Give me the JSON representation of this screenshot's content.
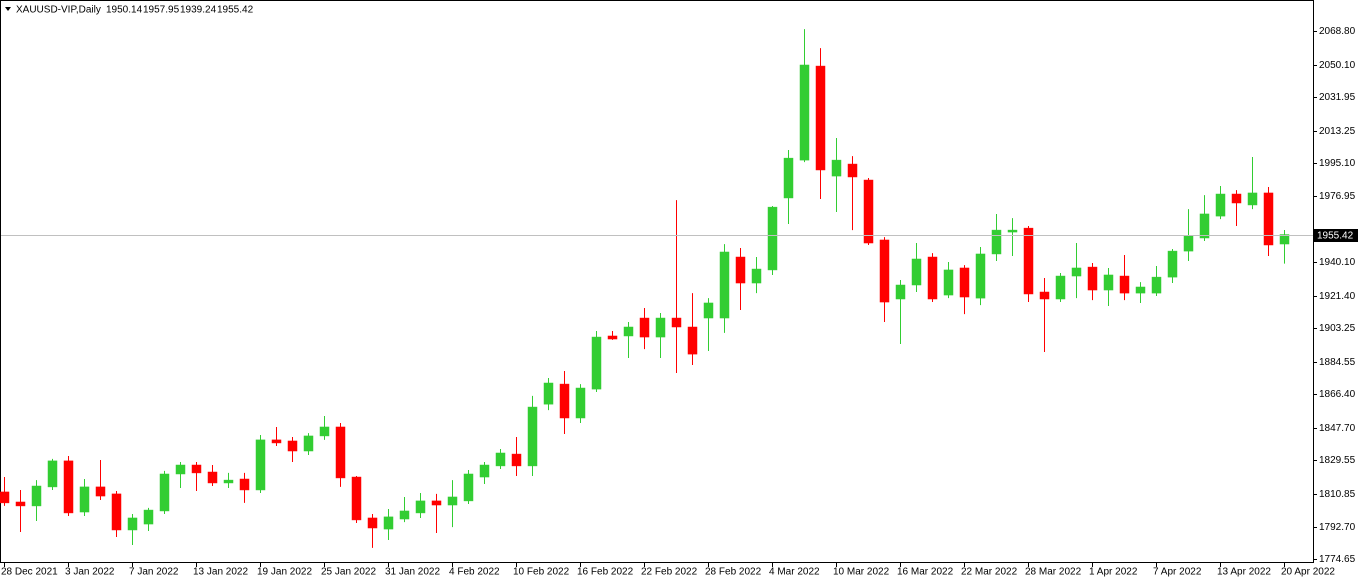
{
  "chart_data": {
    "type": "candlestick",
    "symbol": "XAUUSD-VIP,Daily",
    "categories": [
      "28 Dec 2021",
      null,
      null,
      null,
      "3 Jan 2022",
      null,
      null,
      null,
      "7 Jan 2022",
      null,
      null,
      null,
      "13 Jan 2022",
      null,
      null,
      null,
      "19 Jan 2022",
      null,
      null,
      null,
      "25 Jan 2022",
      null,
      null,
      null,
      "31 Jan 2022",
      null,
      null,
      null,
      "4 Feb 2022",
      null,
      null,
      null,
      "10 Feb 2022",
      null,
      null,
      null,
      "16 Feb 2022",
      null,
      null,
      null,
      "22 Feb 2022",
      null,
      null,
      null,
      "28 Feb 2022",
      null,
      null,
      null,
      "4 Mar 2022",
      null,
      null,
      null,
      "10 Mar 2022",
      null,
      null,
      null,
      "16 Mar 2022",
      null,
      null,
      null,
      "22 Mar 2022",
      null,
      null,
      null,
      "28 Mar 2022",
      null,
      null,
      null,
      "1 Apr 2022",
      null,
      null,
      null,
      "7 Apr 2022",
      null,
      null,
      null,
      "13 Apr 2022",
      null,
      null,
      null,
      "20 Apr 2022"
    ],
    "open": [
      1812.0,
      1806.4,
      1804.2,
      1814.8,
      1829.3,
      1800.8,
      1814.8,
      1810.9,
      1790.8,
      1794.1,
      1801.4,
      1822.0,
      1827.0,
      1823.1,
      1817.0,
      1819.2,
      1813.1,
      1841.0,
      1840.4,
      1834.8,
      1843.2,
      1848.2,
      1820.3,
      1797.5,
      1791.3,
      1796.9,
      1800.3,
      1807.0,
      1804.7,
      1807.0,
      1820.3,
      1826.5,
      1833.1,
      1826.5,
      1860.9,
      1872.1,
      1853.2,
      1869.3,
      1898.9,
      1898.9,
      1908.9,
      1898.3,
      1908.9,
      1903.9,
      1908.9,
      1908.9,
      1942.9,
      1928.4,
      1935.7,
      1975.8,
      1996.9,
      2049.3,
      1988.0,
      1994.7,
      1985.8,
      1952.4,
      1919.5,
      1927.3,
      1942.9,
      1921.7,
      1936.8,
      1920.0,
      1944.6,
      1956.8,
      1959.0,
      1923.4,
      1919.5,
      1932.3,
      1937.3,
      1924.5,
      1932.3,
      1922.8,
      1922.8,
      1931.7,
      1946.2,
      1953.5,
      1965.7,
      1978.0,
      1971.9,
      1978.6,
      1950.14
    ],
    "high": [
      1820.3,
      1813.1,
      1818.6,
      1830.4,
      1832.0,
      1819.2,
      1829.8,
      1812.5,
      1799.7,
      1803.1,
      1823.7,
      1828.7,
      1828.7,
      1827.0,
      1822.6,
      1822.6,
      1843.7,
      1848.2,
      1842.6,
      1844.8,
      1854.3,
      1850.4,
      1820.9,
      1799.7,
      1802.5,
      1809.2,
      1811.4,
      1810.9,
      1818.6,
      1824.2,
      1828.7,
      1835.9,
      1842.6,
      1865.5,
      1875.5,
      1879.4,
      1872.1,
      1901.7,
      1901.7,
      1906.7,
      1914.5,
      1911.7,
      1974.6,
      1922.8,
      1920.0,
      1950.1,
      1947.9,
      1942.9,
      1971.3,
      2002.5,
      2069.9,
      2059.3,
      2009.2,
      1999.1,
      1986.9,
      1954.0,
      1930.1,
      1950.7,
      1945.1,
      1940.1,
      1938.4,
      1948.5,
      1966.9,
      1964.6,
      1960.2,
      1931.2,
      1934.0,
      1950.7,
      1939.6,
      1936.8,
      1944.0,
      1928.9,
      1937.9,
      1947.4,
      1969.6,
      1977.4,
      1982.5,
      1980.2,
      1998.6,
      1981.9,
      1957.95
    ],
    "low": [
      1804.2,
      1789.7,
      1795.8,
      1813.1,
      1798.6,
      1798.6,
      1807.5,
      1786.9,
      1782.4,
      1790.2,
      1799.7,
      1814.2,
      1812.5,
      1815.3,
      1814.2,
      1805.9,
      1811.4,
      1837.6,
      1828.7,
      1832.6,
      1841.0,
      1814.8,
      1794.7,
      1780.8,
      1785.2,
      1795.2,
      1797.5,
      1789.1,
      1792.4,
      1805.3,
      1816.4,
      1824.8,
      1820.9,
      1820.9,
      1857.6,
      1844.3,
      1850.4,
      1867.7,
      1896.7,
      1886.6,
      1891.6,
      1886.6,
      1878.3,
      1882.7,
      1890.5,
      1900.6,
      1913.4,
      1922.8,
      1932.9,
      1961.3,
      1995.8,
      1975.2,
      1968.0,
      1957.9,
      1949.6,
      1906.7,
      1894.4,
      1923.4,
      1917.8,
      1920.0,
      1911.1,
      1916.1,
      1940.7,
      1943.5,
      1917.8,
      1890.0,
      1917.8,
      1920.0,
      1918.9,
      1915.6,
      1918.9,
      1917.3,
      1921.2,
      1928.4,
      1940.7,
      1951.8,
      1964.0,
      1960.2,
      1969.6,
      1943.5,
      1939.24
    ],
    "close": [
      1805.9,
      1804.2,
      1815.3,
      1829.3,
      1800.3,
      1814.8,
      1809.7,
      1790.8,
      1797.5,
      1801.9,
      1822.0,
      1827.0,
      1822.6,
      1817.0,
      1818.6,
      1813.1,
      1841.0,
      1839.3,
      1834.8,
      1843.2,
      1848.2,
      1819.8,
      1796.4,
      1791.9,
      1798.1,
      1801.4,
      1807.0,
      1804.7,
      1809.2,
      1822.0,
      1827.0,
      1833.7,
      1826.5,
      1859.3,
      1872.7,
      1853.2,
      1869.9,
      1898.3,
      1897.2,
      1903.9,
      1898.3,
      1908.9,
      1903.9,
      1888.8,
      1917.3,
      1945.7,
      1928.4,
      1936.2,
      1970.7,
      1998.0,
      2049.9,
      1991.4,
      1996.9,
      1987.5,
      1950.7,
      1917.8,
      1927.3,
      1941.8,
      1919.5,
      1935.7,
      1920.6,
      1944.6,
      1957.9,
      1957.9,
      1922.3,
      1919.5,
      1932.3,
      1936.8,
      1924.5,
      1932.9,
      1922.8,
      1926.2,
      1931.7,
      1946.2,
      1954.6,
      1966.9,
      1978.0,
      1973.0,
      1978.6,
      1949.6,
      1955.42
    ],
    "up_color": "#32cd32",
    "down_color": "#ff0000",
    "ylim": [
      1772.4,
      2085.0
    ],
    "yticks": [
      {
        "value": 2068.8,
        "label": "2068.80"
      },
      {
        "value": 2050.1,
        "label": "2050.10"
      },
      {
        "value": 2031.95,
        "label": "2031.95"
      },
      {
        "value": 2013.25,
        "label": "2013.25"
      },
      {
        "value": 1995.1,
        "label": "1995.10"
      },
      {
        "value": 1976.95,
        "label": "1976.95"
      },
      {
        "value": 1940.1,
        "label": "1940.10"
      },
      {
        "value": 1921.4,
        "label": "1921.40"
      },
      {
        "value": 1903.25,
        "label": "1903.25"
      },
      {
        "value": 1884.55,
        "label": "1884.55"
      },
      {
        "value": 1866.4,
        "label": "1866.40"
      },
      {
        "value": 1847.7,
        "label": "1847.70"
      },
      {
        "value": 1829.55,
        "label": "1829.55"
      },
      {
        "value": 1810.85,
        "label": "1810.85"
      },
      {
        "value": 1792.7,
        "label": "1792.70"
      },
      {
        "value": 1774.65,
        "label": "1774.65"
      }
    ]
  }
}
